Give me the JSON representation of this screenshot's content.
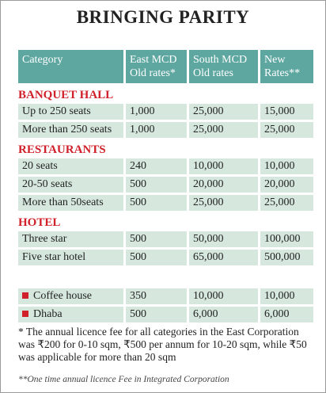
{
  "title": "BRINGING PARITY",
  "table": {
    "headers": [
      [
        "Category"
      ],
      [
        "East MCD",
        "Old rates*"
      ],
      [
        "South MCD",
        "Old rates"
      ],
      [
        "New",
        "Rates**"
      ]
    ],
    "sections": [
      {
        "title": "BANQUET HALL",
        "rows": [
          [
            "Up to 250 seats",
            "1,000",
            "25,000",
            "15,000"
          ],
          [
            "More than 250 seats",
            "1,000",
            "25,000",
            "25,000"
          ]
        ]
      },
      {
        "title": "RESTAURANTS",
        "rows": [
          [
            "20 seats",
            "240",
            "10,000",
            "10,000"
          ],
          [
            "20-50 seats",
            "500",
            "20,000",
            "20,000"
          ],
          [
            "More than 50seats",
            "500",
            "25,000",
            "25,000"
          ]
        ]
      },
      {
        "title": "HOTEL",
        "rows": [
          [
            "Three star",
            "500",
            "50,000",
            "100,000"
          ],
          [
            "Five star hotel",
            "500",
            "65,000",
            "500,000"
          ]
        ]
      }
    ],
    "extra_rows": [
      [
        "Coffee house",
        "350",
        "10,000",
        "10,000"
      ],
      [
        "Dhaba",
        "500",
        "6,000",
        "6,000"
      ]
    ]
  },
  "notes": [
    "* The annual licence fee for all categories in the East Corporation was ₹200 for 0-10 sqm, ₹500 per annum for 10-20 sqm, while ₹50 was applicable for more than 20 sqm",
    "**One time annual licence Fee in Integrated Corporation"
  ]
}
